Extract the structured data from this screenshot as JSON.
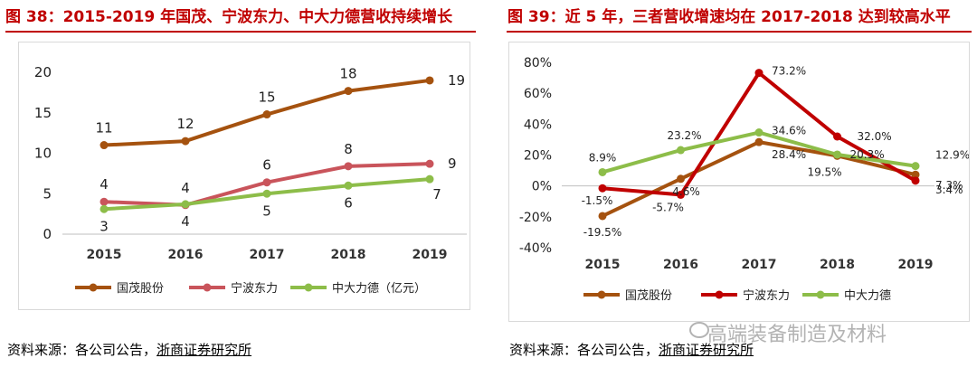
{
  "left": {
    "title": "图 38：2015-2019 年国茂、宁波东力、中大力德营收持续增长",
    "source_prefix": "资料来源：各公司公告，",
    "source_link": "浙商证券研究所",
    "colors": {
      "guomao": "#a5520f",
      "ningbo": "#c9545b",
      "zhongda": "#8dbd49",
      "accent": "#c00000"
    }
  },
  "right": {
    "title": "图 39：近 5 年，三者营收增速均在 2017-2018 达到较高水平",
    "source_prefix": "资料来源：各公司公告，",
    "source_link": "浙商证券研究所",
    "colors": {
      "guomao": "#a5520f",
      "ningbo": "#c00000",
      "zhongda": "#8dbd49"
    }
  },
  "watermark": "高端装备制造及材料",
  "chart_data": [
    {
      "type": "line",
      "title": "图 38：2015-2019 年国茂、宁波东力、中大力德营收持续增长",
      "x": [
        "2015",
        "2016",
        "2017",
        "2018",
        "2019"
      ],
      "ylim": [
        0,
        20
      ],
      "yticks": [
        0,
        5,
        10,
        15,
        20
      ],
      "ytick_labels": [
        "0",
        "5",
        "10",
        "15",
        "20"
      ],
      "xlabel": "",
      "ylabel": "",
      "legend_position": "bottom",
      "series": [
        {
          "name": "国茂股份",
          "values": [
            11,
            11.5,
            14.8,
            17.7,
            19
          ],
          "labels": [
            "11",
            "12",
            "15",
            "18",
            "19"
          ],
          "label_pos": [
            "above",
            "above",
            "above",
            "above",
            "right"
          ]
        },
        {
          "name": "宁波东力",
          "values": [
            4,
            3.6,
            6.4,
            8.4,
            8.7
          ],
          "labels": [
            "4",
            "4",
            "6",
            "8",
            "9"
          ],
          "label_pos": [
            "above",
            "above",
            "above",
            "above",
            "right"
          ]
        },
        {
          "name": "中大力德（亿元）",
          "values": [
            3.1,
            3.7,
            5,
            6,
            6.8
          ],
          "labels": [
            "3",
            "4",
            "5",
            "6",
            "7"
          ],
          "label_pos": [
            "below",
            "below",
            "below",
            "below",
            "belowright"
          ]
        }
      ]
    },
    {
      "type": "line",
      "title": "图 39：近 5 年，三者营收增速均在 2017-2018 达到较高水平",
      "x": [
        "2015",
        "2016",
        "2017",
        "2018",
        "2019"
      ],
      "ylim": [
        -40,
        80
      ],
      "yticks": [
        -40,
        -20,
        0,
        20,
        40,
        60,
        80
      ],
      "ytick_labels": [
        "-40%",
        "-20%",
        "0%",
        "20%",
        "40%",
        "60%",
        "80%"
      ],
      "xlabel": "",
      "ylabel": "",
      "legend_position": "bottom",
      "series": [
        {
          "name": "国茂股份",
          "values": [
            -19.5,
            4.6,
            28.4,
            19.5,
            7.3
          ],
          "labels": [
            "-19.5%",
            "4.6%",
            "28.4%",
            "19.5%",
            "7.3%"
          ]
        },
        {
          "name": "宁波东力",
          "values": [
            -1.5,
            -5.7,
            73.2,
            32.0,
            3.4
          ],
          "labels": [
            "-1.5%",
            "-5.7%",
            "73.2%",
            "32.0%",
            "3.4%"
          ]
        },
        {
          "name": "中大力德",
          "values": [
            8.9,
            23.2,
            34.6,
            20.3,
            12.9
          ],
          "labels": [
            "8.9%",
            "23.2%",
            "34.6%",
            "20.3%",
            "12.9%"
          ]
        }
      ]
    }
  ]
}
